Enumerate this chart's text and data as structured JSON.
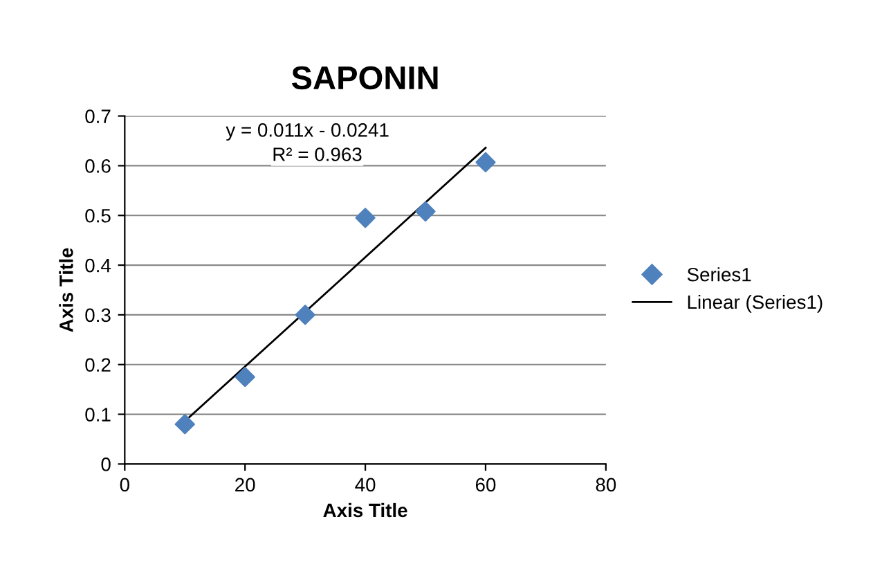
{
  "chart_data": {
    "type": "scatter",
    "title": "SAPONIN",
    "xlabel": "Axis Title",
    "ylabel": "Axis Title",
    "series": [
      {
        "name": "Series1",
        "color": "#4f81bd",
        "marker": "diamond",
        "x": [
          10,
          20,
          30,
          40,
          50,
          60
        ],
        "values": [
          0.08,
          0.175,
          0.3,
          0.495,
          0.508,
          0.607
        ]
      },
      {
        "name": "Linear (Series1)",
        "type": "line",
        "color": "#000000",
        "line_style": "solid",
        "x": [
          10,
          60
        ],
        "values": [
          0.086,
          0.636
        ]
      }
    ],
    "annotations": [
      "y = 0.011x - 0.0241",
      "R² = 0.963"
    ],
    "xlim": [
      0,
      80
    ],
    "xticks": [
      0,
      20,
      40,
      60,
      80
    ],
    "ylim": [
      0,
      0.7
    ],
    "yticks": [
      0,
      0.1,
      0.2,
      0.3,
      0.4,
      0.5,
      0.6,
      0.7
    ],
    "grid": "y",
    "legend": "right"
  }
}
